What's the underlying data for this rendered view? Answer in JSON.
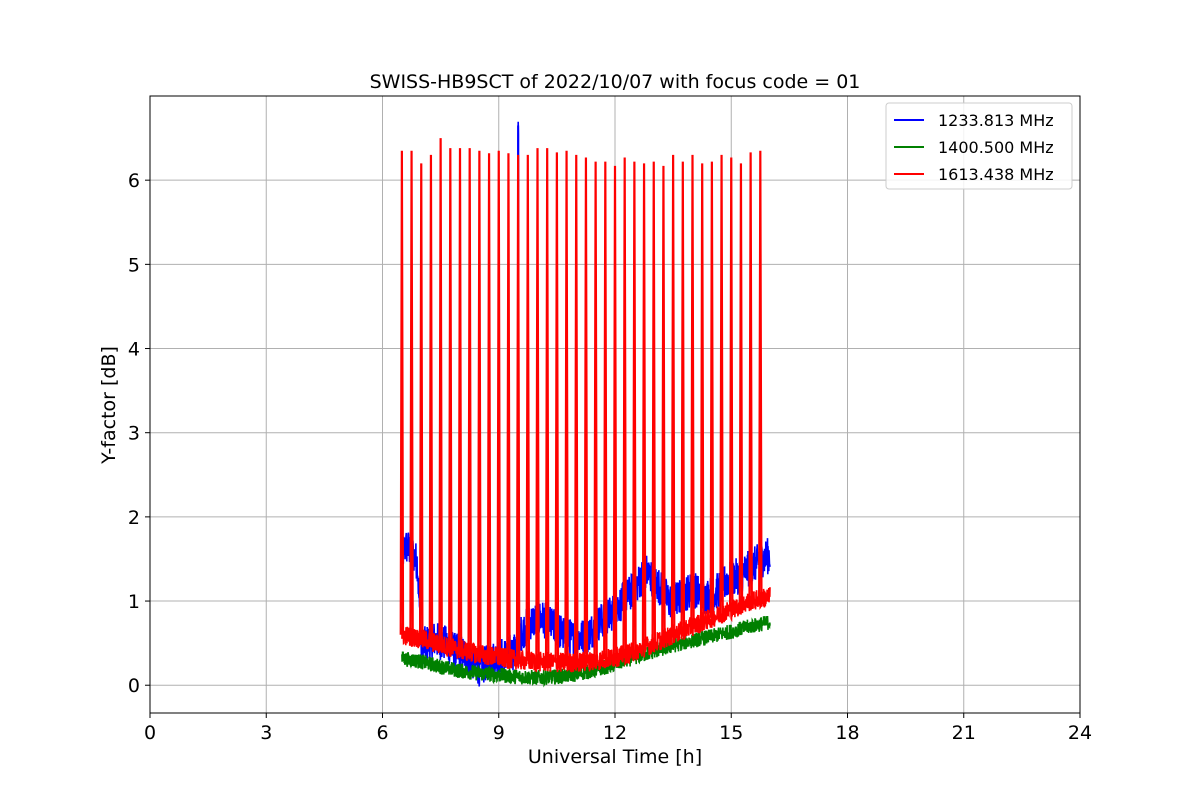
{
  "chart_data": {
    "type": "line",
    "title": "SWISS-HB9SCT of 2022/10/07 with focus code = 01",
    "xlabel": "Universal Time [h]",
    "ylabel": "Y-factor [dB]",
    "xlim": [
      0,
      24
    ],
    "ylim": [
      -0.33,
      7.0
    ],
    "xticks": [
      0,
      3,
      6,
      9,
      12,
      15,
      18,
      21,
      24
    ],
    "yticks": [
      0,
      1,
      2,
      3,
      4,
      5,
      6
    ],
    "grid": true,
    "legend_position": "top-right",
    "series": [
      {
        "name": "1233.813 MHz",
        "color": "#0000ff",
        "x": [
          6.5,
          6.6,
          6.75,
          6.9,
          7.0,
          7.3,
          7.6,
          7.9,
          8.2,
          8.5,
          8.8,
          9.1,
          9.4,
          9.5,
          9.55,
          9.8,
          10.1,
          10.4,
          10.7,
          11.0,
          11.3,
          11.6,
          11.9,
          12.2,
          12.5,
          12.8,
          13.1,
          13.4,
          13.7,
          14.0,
          14.3,
          14.6,
          14.9,
          15.2,
          15.5,
          15.8,
          16.0
        ],
        "y": [
          1.55,
          1.65,
          1.6,
          1.45,
          0.45,
          0.55,
          0.5,
          0.4,
          0.35,
          0.2,
          0.3,
          0.35,
          0.4,
          6.65,
          0.6,
          0.75,
          0.8,
          0.7,
          0.6,
          0.55,
          0.6,
          0.75,
          0.85,
          1.0,
          1.15,
          1.35,
          1.2,
          1.0,
          1.05,
          1.15,
          1.05,
          1.1,
          1.25,
          1.3,
          1.4,
          1.5,
          1.55
        ]
      },
      {
        "name": "1400.500 MHz",
        "color": "#008000",
        "x": [
          6.5,
          7.0,
          7.5,
          8.0,
          8.5,
          9.0,
          9.5,
          10.0,
          10.5,
          11.0,
          11.5,
          12.0,
          12.5,
          13.0,
          13.5,
          14.0,
          14.5,
          15.0,
          15.5,
          16.0
        ],
        "y": [
          0.32,
          0.28,
          0.22,
          0.17,
          0.14,
          0.12,
          0.1,
          0.09,
          0.1,
          0.13,
          0.18,
          0.25,
          0.33,
          0.4,
          0.47,
          0.53,
          0.58,
          0.64,
          0.7,
          0.75
        ]
      },
      {
        "name": "1613.438 MHz",
        "color": "#ff0000",
        "x": [
          6.5,
          7.0,
          7.5,
          8.0,
          8.5,
          9.0,
          9.5,
          10.0,
          10.5,
          11.0,
          11.5,
          12.0,
          12.5,
          13.0,
          13.5,
          14.0,
          14.5,
          15.0,
          15.5,
          16.0
        ],
        "y": [
          0.6,
          0.55,
          0.48,
          0.42,
          0.37,
          0.33,
          0.3,
          0.28,
          0.27,
          0.27,
          0.29,
          0.33,
          0.4,
          0.5,
          0.6,
          0.7,
          0.8,
          0.9,
          1.0,
          1.05
        ],
        "spikes_x": [
          6.5,
          6.75,
          7.0,
          7.25,
          7.5,
          7.75,
          8.0,
          8.25,
          8.5,
          8.75,
          9.0,
          9.25,
          9.5,
          9.75,
          10.0,
          10.25,
          10.5,
          10.75,
          11.0,
          11.25,
          11.5,
          11.75,
          12.0,
          12.25,
          12.5,
          12.75,
          13.0,
          13.25,
          13.5,
          13.75,
          14.0,
          14.25,
          14.5,
          14.75,
          15.0,
          15.25,
          15.5,
          15.75
        ],
        "spikes_y": [
          6.35,
          6.35,
          6.2,
          6.3,
          6.5,
          6.38,
          6.38,
          6.38,
          6.35,
          6.32,
          6.35,
          6.32,
          6.3,
          6.3,
          6.38,
          6.38,
          6.33,
          6.35,
          6.3,
          6.27,
          6.22,
          6.22,
          6.17,
          6.27,
          6.22,
          6.2,
          6.22,
          6.17,
          6.3,
          6.22,
          6.3,
          6.2,
          6.22,
          6.3,
          6.27,
          6.2,
          6.33,
          6.35
        ]
      }
    ]
  }
}
